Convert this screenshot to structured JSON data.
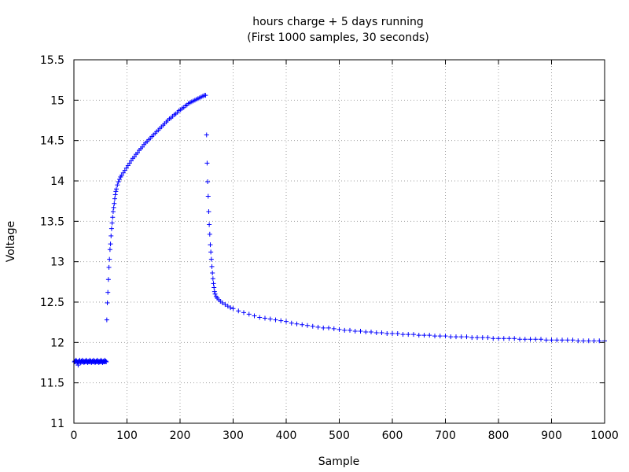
{
  "chart_data": {
    "type": "scatter",
    "title": "hours charge + 5 days running",
    "subtitle": "(First 1000 samples, 30 seconds)",
    "xlabel": "Sample",
    "ylabel": "Voltage",
    "xlim": [
      0,
      1000
    ],
    "ylim": [
      11,
      15.5
    ],
    "x_ticks": [
      0,
      100,
      200,
      300,
      400,
      500,
      600,
      700,
      800,
      900,
      1000
    ],
    "x_tick_labels": [
      "0",
      "100",
      "200",
      "300",
      "400",
      "500",
      "600",
      "700",
      "800",
      "900",
      "1000"
    ],
    "y_ticks": [
      11,
      11.5,
      12,
      12.5,
      13,
      13.5,
      14,
      14.5,
      15,
      15.5
    ],
    "y_tick_labels": [
      "11",
      "11.5",
      "12",
      "12.5",
      "13",
      "13.5",
      "14",
      "14.5",
      "15",
      "15.5"
    ],
    "grid": true,
    "marker": "plus",
    "colors": {
      "series": "#0000ff",
      "grid": "#a0a0a0",
      "axis": "#000000"
    },
    "series": [
      {
        "points": [
          [
            1,
            11.76
          ],
          [
            2,
            11.77
          ],
          [
            3,
            11.76
          ],
          [
            4,
            11.78
          ],
          [
            5,
            11.77
          ],
          [
            6,
            11.75
          ],
          [
            7,
            11.76
          ],
          [
            8,
            11.72
          ],
          [
            9,
            11.77
          ],
          [
            10,
            11.76
          ],
          [
            11,
            11.78
          ],
          [
            12,
            11.76
          ],
          [
            13,
            11.75
          ],
          [
            14,
            11.77
          ],
          [
            15,
            11.76
          ],
          [
            16,
            11.78
          ],
          [
            17,
            11.76
          ],
          [
            18,
            11.77
          ],
          [
            19,
            11.75
          ],
          [
            20,
            11.76
          ],
          [
            21,
            11.77
          ],
          [
            22,
            11.76
          ],
          [
            23,
            11.78
          ],
          [
            24,
            11.76
          ],
          [
            25,
            11.77
          ],
          [
            26,
            11.75
          ],
          [
            27,
            11.76
          ],
          [
            28,
            11.77
          ],
          [
            29,
            11.76
          ],
          [
            30,
            11.78
          ],
          [
            31,
            11.76
          ],
          [
            32,
            11.77
          ],
          [
            33,
            11.75
          ],
          [
            34,
            11.76
          ],
          [
            35,
            11.77
          ],
          [
            36,
            11.76
          ],
          [
            37,
            11.78
          ],
          [
            38,
            11.76
          ],
          [
            39,
            11.77
          ],
          [
            40,
            11.75
          ],
          [
            41,
            11.76
          ],
          [
            42,
            11.77
          ],
          [
            43,
            11.76
          ],
          [
            44,
            11.78
          ],
          [
            45,
            11.76
          ],
          [
            46,
            11.77
          ],
          [
            47,
            11.75
          ],
          [
            48,
            11.76
          ],
          [
            49,
            11.77
          ],
          [
            50,
            11.76
          ],
          [
            51,
            11.78
          ],
          [
            52,
            11.76
          ],
          [
            53,
            11.77
          ],
          [
            54,
            11.75
          ],
          [
            55,
            11.76
          ],
          [
            56,
            11.77
          ],
          [
            57,
            11.76
          ],
          [
            58,
            11.78
          ],
          [
            59,
            11.76
          ],
          [
            60,
            11.77
          ],
          [
            61,
            11.76
          ],
          [
            62,
            12.28
          ],
          [
            63,
            12.49
          ],
          [
            64,
            12.62
          ],
          [
            65,
            12.78
          ],
          [
            66,
            12.93
          ],
          [
            67,
            13.03
          ],
          [
            68,
            13.15
          ],
          [
            69,
            13.22
          ],
          [
            70,
            13.32
          ],
          [
            71,
            13.41
          ],
          [
            72,
            13.48
          ],
          [
            73,
            13.55
          ],
          [
            74,
            13.62
          ],
          [
            75,
            13.67
          ],
          [
            76,
            13.72
          ],
          [
            77,
            13.78
          ],
          [
            78,
            13.83
          ],
          [
            79,
            13.87
          ],
          [
            80,
            13.9
          ],
          [
            82,
            13.95
          ],
          [
            84,
            13.99
          ],
          [
            86,
            14.02
          ],
          [
            88,
            14.05
          ],
          [
            90,
            14.07
          ],
          [
            93,
            14.1
          ],
          [
            96,
            14.13
          ],
          [
            99,
            14.16
          ],
          [
            102,
            14.19
          ],
          [
            105,
            14.22
          ],
          [
            108,
            14.25
          ],
          [
            111,
            14.28
          ],
          [
            114,
            14.3
          ],
          [
            117,
            14.33
          ],
          [
            120,
            14.35
          ],
          [
            123,
            14.38
          ],
          [
            126,
            14.4
          ],
          [
            129,
            14.42
          ],
          [
            132,
            14.45
          ],
          [
            135,
            14.47
          ],
          [
            138,
            14.49
          ],
          [
            141,
            14.51
          ],
          [
            144,
            14.53
          ],
          [
            147,
            14.55
          ],
          [
            150,
            14.57
          ],
          [
            153,
            14.59
          ],
          [
            156,
            14.61
          ],
          [
            159,
            14.63
          ],
          [
            162,
            14.65
          ],
          [
            165,
            14.67
          ],
          [
            168,
            14.69
          ],
          [
            171,
            14.71
          ],
          [
            174,
            14.73
          ],
          [
            177,
            14.75
          ],
          [
            180,
            14.77
          ],
          [
            183,
            14.78
          ],
          [
            186,
            14.8
          ],
          [
            189,
            14.82
          ],
          [
            192,
            14.83
          ],
          [
            195,
            14.85
          ],
          [
            198,
            14.87
          ],
          [
            201,
            14.88
          ],
          [
            204,
            14.9
          ],
          [
            207,
            14.91
          ],
          [
            210,
            14.93
          ],
          [
            213,
            14.94
          ],
          [
            216,
            14.96
          ],
          [
            219,
            14.97
          ],
          [
            222,
            14.98
          ],
          [
            225,
            14.99
          ],
          [
            228,
            15.0
          ],
          [
            231,
            15.01
          ],
          [
            234,
            15.02
          ],
          [
            237,
            15.03
          ],
          [
            240,
            15.04
          ],
          [
            243,
            15.05
          ],
          [
            246,
            15.06
          ],
          [
            248,
            15.06
          ],
          [
            250,
            14.57
          ],
          [
            251,
            14.22
          ],
          [
            252,
            13.99
          ],
          [
            253,
            13.81
          ],
          [
            254,
            13.62
          ],
          [
            255,
            13.46
          ],
          [
            256,
            13.34
          ],
          [
            257,
            13.21
          ],
          [
            258,
            13.12
          ],
          [
            259,
            13.03
          ],
          [
            260,
            12.94
          ],
          [
            261,
            12.86
          ],
          [
            262,
            12.79
          ],
          [
            263,
            12.73
          ],
          [
            264,
            12.68
          ],
          [
            265,
            12.63
          ],
          [
            266,
            12.6
          ],
          [
            268,
            12.57
          ],
          [
            270,
            12.55
          ],
          [
            273,
            12.53
          ],
          [
            276,
            12.51
          ],
          [
            280,
            12.49
          ],
          [
            285,
            12.47
          ],
          [
            290,
            12.45
          ],
          [
            295,
            12.43
          ],
          [
            300,
            12.42
          ],
          [
            310,
            12.39
          ],
          [
            320,
            12.37
          ],
          [
            330,
            12.35
          ],
          [
            340,
            12.33
          ],
          [
            350,
            12.31
          ],
          [
            360,
            12.3
          ],
          [
            370,
            12.29
          ],
          [
            380,
            12.28
          ],
          [
            390,
            12.27
          ],
          [
            400,
            12.26
          ],
          [
            410,
            12.24
          ],
          [
            420,
            12.23
          ],
          [
            430,
            12.22
          ],
          [
            440,
            12.21
          ],
          [
            450,
            12.2
          ],
          [
            460,
            12.19
          ],
          [
            470,
            12.18
          ],
          [
            480,
            12.18
          ],
          [
            490,
            12.17
          ],
          [
            500,
            12.16
          ],
          [
            510,
            12.15
          ],
          [
            520,
            12.15
          ],
          [
            530,
            12.14
          ],
          [
            540,
            12.14
          ],
          [
            550,
            12.13
          ],
          [
            560,
            12.13
          ],
          [
            570,
            12.12
          ],
          [
            580,
            12.12
          ],
          [
            590,
            12.11
          ],
          [
            600,
            12.11
          ],
          [
            610,
            12.11
          ],
          [
            620,
            12.1
          ],
          [
            630,
            12.1
          ],
          [
            640,
            12.1
          ],
          [
            650,
            12.09
          ],
          [
            660,
            12.09
          ],
          [
            670,
            12.09
          ],
          [
            680,
            12.08
          ],
          [
            690,
            12.08
          ],
          [
            700,
            12.08
          ],
          [
            710,
            12.07
          ],
          [
            720,
            12.07
          ],
          [
            730,
            12.07
          ],
          [
            740,
            12.07
          ],
          [
            750,
            12.06
          ],
          [
            760,
            12.06
          ],
          [
            770,
            12.06
          ],
          [
            780,
            12.06
          ],
          [
            790,
            12.05
          ],
          [
            800,
            12.05
          ],
          [
            810,
            12.05
          ],
          [
            820,
            12.05
          ],
          [
            830,
            12.05
          ],
          [
            840,
            12.04
          ],
          [
            850,
            12.04
          ],
          [
            860,
            12.04
          ],
          [
            870,
            12.04
          ],
          [
            880,
            12.04
          ],
          [
            890,
            12.03
          ],
          [
            900,
            12.03
          ],
          [
            910,
            12.03
          ],
          [
            920,
            12.03
          ],
          [
            930,
            12.03
          ],
          [
            940,
            12.03
          ],
          [
            950,
            12.02
          ],
          [
            960,
            12.02
          ],
          [
            970,
            12.02
          ],
          [
            980,
            12.02
          ],
          [
            990,
            12.02
          ],
          [
            1000,
            12.02
          ]
        ]
      }
    ]
  }
}
